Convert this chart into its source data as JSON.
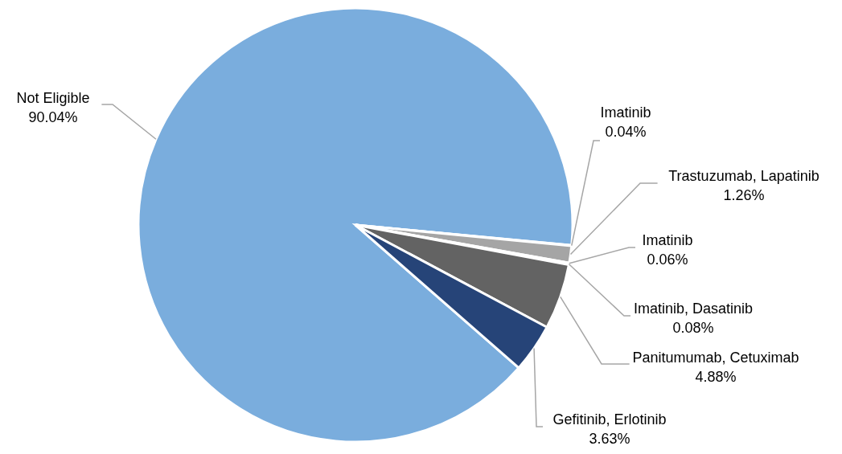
{
  "chart_data": {
    "type": "pie",
    "categories": [
      "Not Eligible",
      "Imatinib",
      "Trastuzumab, Lapatinib",
      "Imatinib",
      "Imatinib, Dasatinib",
      "Panitumumab, Cetuximab",
      "Gefitinib, Erlotinib"
    ],
    "values": [
      90.04,
      0.04,
      1.26,
      0.06,
      0.08,
      4.88,
      3.63
    ],
    "value_labels": [
      "90.04%",
      "0.04%",
      "1.26%",
      "0.06%",
      "0.08%",
      "4.88%",
      "3.63%"
    ],
    "colors": [
      "#7aaddd",
      "#bdbdbd",
      "#a5a5a5",
      "#8c8c8c",
      "#7a7a7a",
      "#636363",
      "#264478"
    ]
  }
}
